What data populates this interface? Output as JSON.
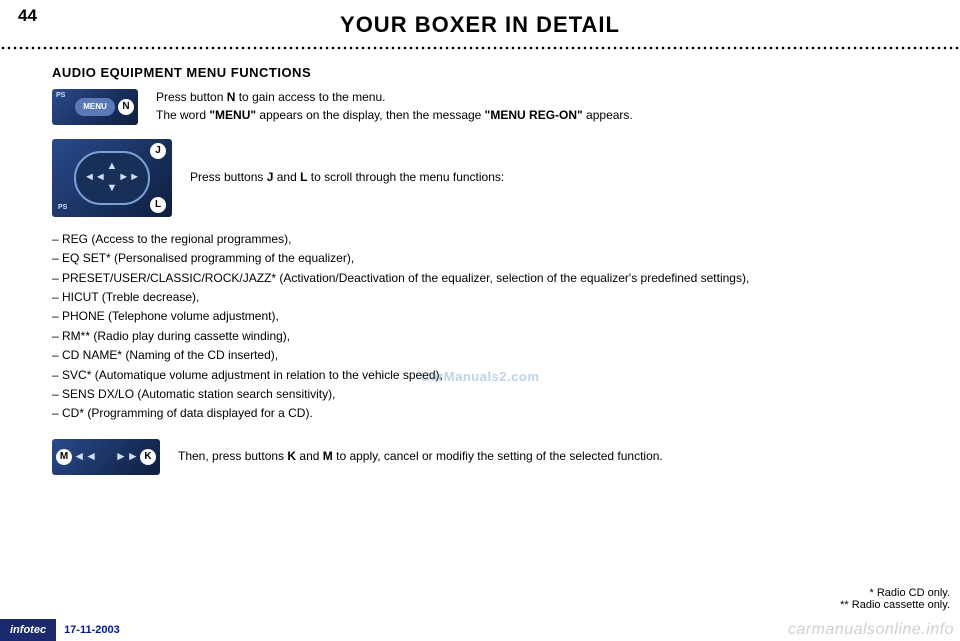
{
  "page_number": "44",
  "title": "YOUR BOXER IN DETAIL",
  "section_title": "AUDIO EQUIPMENT MENU FUNCTIONS",
  "menu_instruction_pre": "Press button ",
  "menu_instruction_btn": "N",
  "menu_instruction_post": " to gain access to the menu.",
  "menu_line2_pre": "The word ",
  "menu_line2_q1": "\"MENU\"",
  "menu_line2_mid": " appears on the display, then the message ",
  "menu_line2_q2": "\"MENU REG-ON\"",
  "menu_line2_post": " appears.",
  "scroll_pre": "Press buttons ",
  "scroll_j": "J",
  "scroll_mid": " and ",
  "scroll_l": "L",
  "scroll_post": " to scroll through the menu functions:",
  "functions": [
    "REG (Access to the regional programmes),",
    "EQ SET* (Personalised programming of the equalizer),",
    "PRESET/USER/CLASSIC/ROCK/JAZZ* (Activation/Deactivation of the equalizer, selection of the equalizer's predefined settings),",
    "HICUT (Treble decrease),",
    "PHONE (Telephone volume adjustment),",
    "RM** (Radio play during cassette winding),",
    "CD NAME* (Naming of the CD inserted),",
    "SVC* (Automatique volume adjustment in relation to the vehicle speed),",
    "SENS DX/LO (Automatic station search sensitivity),",
    "CD* (Programming of data displayed for a CD)."
  ],
  "apply_pre": "Then, press buttons ",
  "apply_k": "K",
  "apply_mid": " and ",
  "apply_m": "M",
  "apply_post": " to apply, cancel or modifiy the setting of the selected function.",
  "footnote1": "* Radio CD only.",
  "footnote2": "** Radio cassette only.",
  "footer_brand": "infotec",
  "footer_date": "17-11-2003",
  "watermark": "carmanualsonline.info",
  "watermark_center": "CarManuals2.com",
  "icon_labels": {
    "ps": "PS",
    "menu": "MENU",
    "n": "N",
    "j": "J",
    "l": "L",
    "m": "M",
    "k": "K"
  },
  "colors": {
    "panel_grad_a": "#2a4a8a",
    "panel_grad_b": "#0d1e3f",
    "footer_bg": "#1a2a6c",
    "date_color": "#001a9a",
    "watermark_color": "#d0d0d0"
  }
}
